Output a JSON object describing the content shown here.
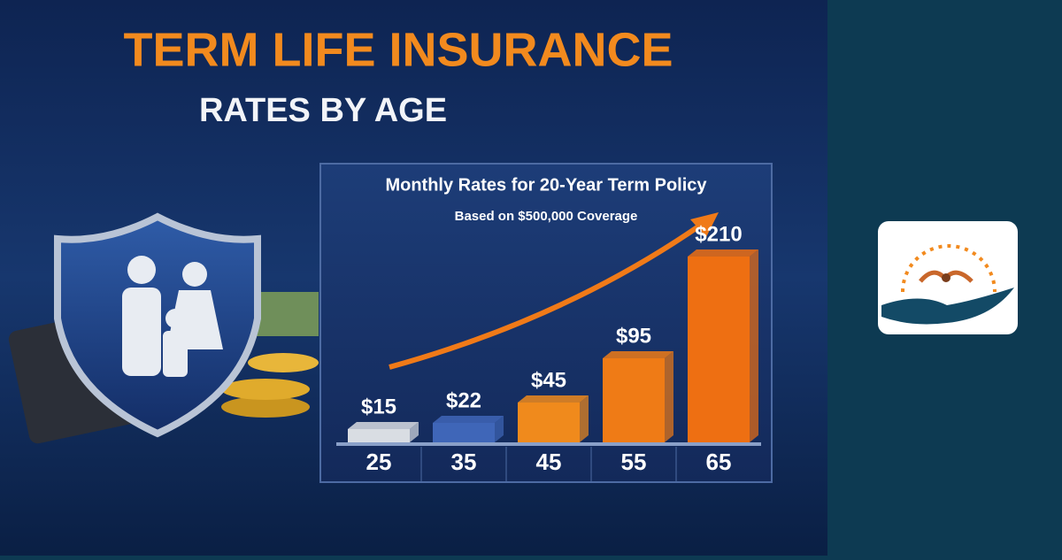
{
  "headline": {
    "title": "TERM LIFE INSURANCE",
    "subtitle": "RATES BY AGE"
  },
  "chart_data": {
    "type": "bar",
    "title": "Monthly Rates for 20-Year Term Policy",
    "subtitle": "Based on $500,000 Coverage",
    "categories": [
      "25",
      "35",
      "45",
      "55",
      "65"
    ],
    "values": [
      15,
      22,
      45,
      95,
      210
    ],
    "value_labels": [
      "$15",
      "$22",
      "$45",
      "$95",
      "$210"
    ],
    "colors": [
      "#d9dde3",
      "#3f66b8",
      "#f08a1c",
      "#ef7b16",
      "#ee6f12"
    ]
  }
}
